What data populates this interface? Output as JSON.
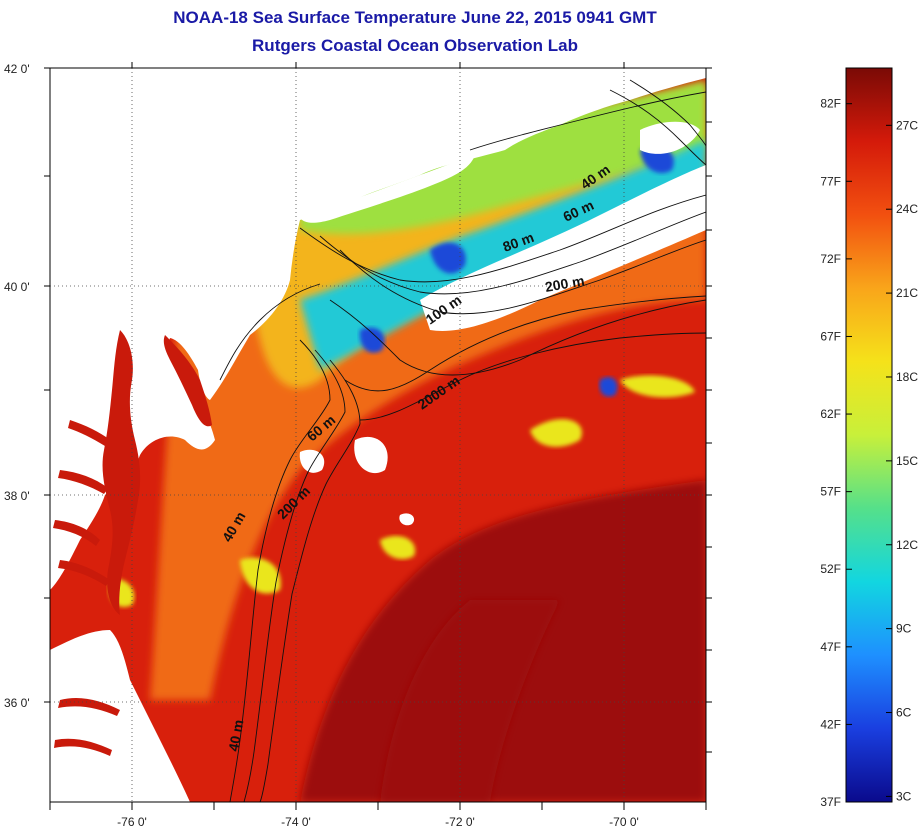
{
  "title": {
    "line1": "NOAA-18 Sea Surface Temperature June 22, 2015 0941 GMT",
    "line2": "Rutgers Coastal Ocean Observation Lab"
  },
  "axes": {
    "lat_labels": [
      "42 0'",
      "40 0'",
      "38 0'",
      "36 0'"
    ],
    "lon_labels": [
      "-76 0'",
      "-74 0'",
      "-72 0'",
      "-70 0'"
    ]
  },
  "contours": [
    "40 m",
    "60 m",
    "80 m",
    "200 m",
    "100 m",
    "2000 m",
    "60 m",
    "200 m",
    "40 m",
    "40 m"
  ],
  "colorbar": {
    "fahrenheit": [
      "82F",
      "77F",
      "72F",
      "67F",
      "62F",
      "57F",
      "52F",
      "47F",
      "42F",
      "37F"
    ],
    "celsius": [
      "27C",
      "24C",
      "21C",
      "18C",
      "15C",
      "12C",
      "9C",
      "6C",
      "3C"
    ],
    "colors": [
      "#0a0a8c",
      "#1a3fe0",
      "#1e90ff",
      "#12d6e0",
      "#55e08a",
      "#c8f03a",
      "#f5e21a",
      "#f9a51a",
      "#f25010",
      "#d41a0a",
      "#7a0a06"
    ]
  },
  "palette": {
    "land": "#ffffff",
    "ocean_warm": "#d8200c",
    "ocean_hot": "#9c0f08",
    "ocean_mid": "#f06a14",
    "ocean_cool": "#f3b41c",
    "shelf_yellow": "#eae61a",
    "shelf_green": "#9ee040",
    "cold_cyan": "#21c9d6",
    "cold_blue": "#1d49d8",
    "bay_water": "#c91a0b"
  }
}
